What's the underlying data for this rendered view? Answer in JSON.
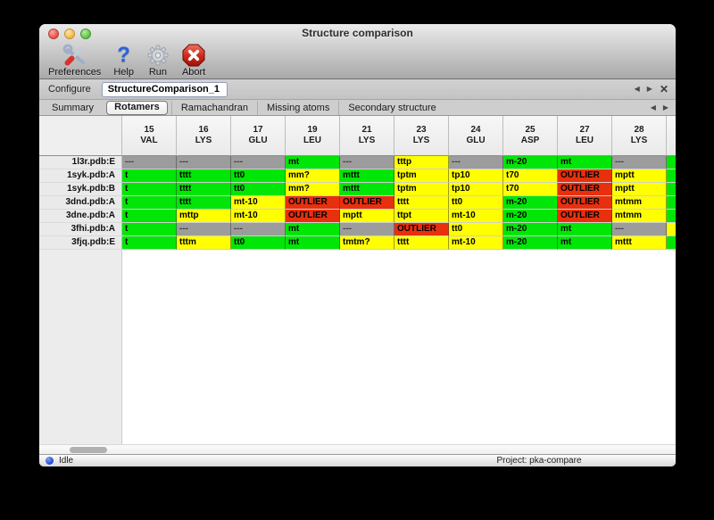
{
  "window": {
    "title": "Structure comparison"
  },
  "titlebar_icons": [
    "close-traffic-light",
    "minimize-traffic-light",
    "zoom-traffic-light"
  ],
  "toolbar": {
    "items": [
      {
        "label": "Preferences",
        "icon": "preferences-tools-icon"
      },
      {
        "label": "Help",
        "icon": "help-question-icon"
      },
      {
        "label": "Run",
        "icon": "run-gear-icon"
      },
      {
        "label": "Abort",
        "icon": "abort-stop-icon"
      }
    ]
  },
  "configure": {
    "label": "Configure",
    "value": "StructureComparison_1"
  },
  "nav_glyphs": {
    "prev": "◀",
    "next": "▶",
    "close": "✕"
  },
  "tabs": {
    "items": [
      {
        "label": "Summary",
        "selected": false
      },
      {
        "label": "Rotamers",
        "selected": true
      },
      {
        "label": "Ramachandran",
        "selected": false
      },
      {
        "label": "Missing atoms",
        "selected": false
      },
      {
        "label": "Secondary structure",
        "selected": false
      }
    ]
  },
  "colors": {
    "green": "#00e606",
    "yellow": "#ffff00",
    "red": "#e8300e",
    "gray": "#9c9c9c"
  },
  "table": {
    "columns": [
      {
        "number": "15",
        "residue": "VAL"
      },
      {
        "number": "16",
        "residue": "LYS"
      },
      {
        "number": "17",
        "residue": "GLU"
      },
      {
        "number": "19",
        "residue": "LEU"
      },
      {
        "number": "21",
        "residue": "LYS"
      },
      {
        "number": "23",
        "residue": "LYS"
      },
      {
        "number": "24",
        "residue": "GLU"
      },
      {
        "number": "25",
        "residue": "ASP"
      },
      {
        "number": "27",
        "residue": "LEU"
      },
      {
        "number": "28",
        "residue": "LYS"
      }
    ],
    "rows": [
      {
        "label": "1l3r.pdb:E",
        "overflow_color": "green",
        "cells": [
          {
            "text": "---",
            "color": "gray"
          },
          {
            "text": "---",
            "color": "gray"
          },
          {
            "text": "---",
            "color": "gray"
          },
          {
            "text": "mt",
            "color": "green"
          },
          {
            "text": "---",
            "color": "gray"
          },
          {
            "text": "tttp",
            "color": "yellow"
          },
          {
            "text": "---",
            "color": "gray"
          },
          {
            "text": "m-20",
            "color": "green"
          },
          {
            "text": "mt",
            "color": "green"
          },
          {
            "text": "---",
            "color": "gray"
          }
        ]
      },
      {
        "label": "1syk.pdb:A",
        "overflow_color": "green",
        "cells": [
          {
            "text": "t",
            "color": "green"
          },
          {
            "text": "tttt",
            "color": "green"
          },
          {
            "text": "tt0",
            "color": "green"
          },
          {
            "text": "mm?",
            "color": "yellow"
          },
          {
            "text": "mttt",
            "color": "green"
          },
          {
            "text": "tptm",
            "color": "yellow"
          },
          {
            "text": "tp10",
            "color": "yellow"
          },
          {
            "text": "t70",
            "color": "yellow"
          },
          {
            "text": "OUTLIER",
            "color": "red"
          },
          {
            "text": "mptt",
            "color": "yellow"
          }
        ]
      },
      {
        "label": "1syk.pdb:B",
        "overflow_color": "green",
        "cells": [
          {
            "text": "t",
            "color": "green"
          },
          {
            "text": "tttt",
            "color": "green"
          },
          {
            "text": "tt0",
            "color": "green"
          },
          {
            "text": "mm?",
            "color": "yellow"
          },
          {
            "text": "mttt",
            "color": "green"
          },
          {
            "text": "tptm",
            "color": "yellow"
          },
          {
            "text": "tp10",
            "color": "yellow"
          },
          {
            "text": "t70",
            "color": "yellow"
          },
          {
            "text": "OUTLIER",
            "color": "red"
          },
          {
            "text": "mptt",
            "color": "yellow"
          }
        ]
      },
      {
        "label": "3dnd.pdb:A",
        "overflow_color": "green",
        "cells": [
          {
            "text": "t",
            "color": "green"
          },
          {
            "text": "tttt",
            "color": "green"
          },
          {
            "text": "mt-10",
            "color": "yellow"
          },
          {
            "text": "OUTLIER",
            "color": "red"
          },
          {
            "text": "OUTLIER",
            "color": "red"
          },
          {
            "text": "tttt",
            "color": "yellow"
          },
          {
            "text": "tt0",
            "color": "yellow"
          },
          {
            "text": "m-20",
            "color": "green"
          },
          {
            "text": "OUTLIER",
            "color": "red"
          },
          {
            "text": "mtmm",
            "color": "yellow"
          }
        ]
      },
      {
        "label": "3dne.pdb:A",
        "overflow_color": "green",
        "cells": [
          {
            "text": "t",
            "color": "green"
          },
          {
            "text": "mttp",
            "color": "yellow"
          },
          {
            "text": "mt-10",
            "color": "yellow"
          },
          {
            "text": "OUTLIER",
            "color": "red"
          },
          {
            "text": "mptt",
            "color": "yellow"
          },
          {
            "text": "ttpt",
            "color": "yellow"
          },
          {
            "text": "mt-10",
            "color": "yellow"
          },
          {
            "text": "m-20",
            "color": "green"
          },
          {
            "text": "OUTLIER",
            "color": "red"
          },
          {
            "text": "mtmm",
            "color": "yellow"
          }
        ]
      },
      {
        "label": "3fhi.pdb:A",
        "overflow_color": "yellow",
        "cells": [
          {
            "text": "t",
            "color": "green"
          },
          {
            "text": "---",
            "color": "gray"
          },
          {
            "text": "---",
            "color": "gray"
          },
          {
            "text": "mt",
            "color": "green"
          },
          {
            "text": "---",
            "color": "gray"
          },
          {
            "text": "OUTLIER",
            "color": "red"
          },
          {
            "text": "tt0",
            "color": "yellow"
          },
          {
            "text": "m-20",
            "color": "green"
          },
          {
            "text": "mt",
            "color": "green"
          },
          {
            "text": "---",
            "color": "gray"
          }
        ]
      },
      {
        "label": "3fjq.pdb:E",
        "overflow_color": "green",
        "cells": [
          {
            "text": "t",
            "color": "green"
          },
          {
            "text": "tttm",
            "color": "yellow"
          },
          {
            "text": "tt0",
            "color": "green"
          },
          {
            "text": "mt",
            "color": "green"
          },
          {
            "text": "tmtm?",
            "color": "yellow"
          },
          {
            "text": "tttt",
            "color": "yellow"
          },
          {
            "text": "mt-10",
            "color": "yellow"
          },
          {
            "text": "m-20",
            "color": "green"
          },
          {
            "text": "mt",
            "color": "green"
          },
          {
            "text": "mttt",
            "color": "yellow"
          }
        ]
      }
    ]
  },
  "statusbar": {
    "status": "Idle",
    "project": "Project: pka-compare"
  }
}
